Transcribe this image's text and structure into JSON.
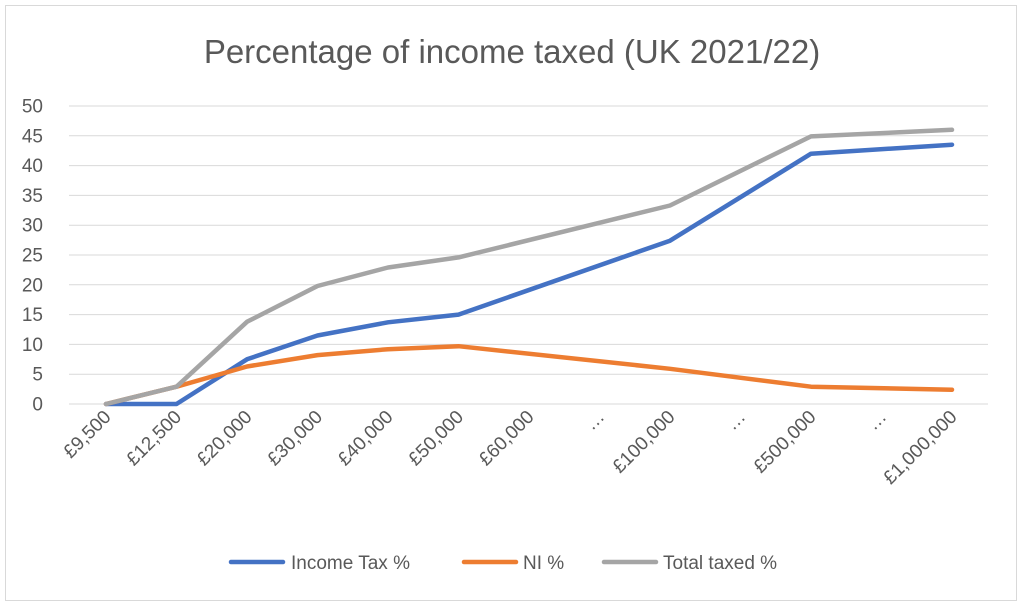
{
  "chart_data": {
    "type": "line",
    "title": "Percentage of income taxed (UK 2021/22)",
    "xlabel": "",
    "ylabel": "",
    "categories": [
      "£9,500",
      "£12,500",
      "£20,000",
      "£30,000",
      "£40,000",
      "£50,000",
      "£60,000",
      "…",
      "£100,000",
      "…",
      "£500,000",
      "…",
      "£1,000,000"
    ],
    "ylim": [
      0,
      50
    ],
    "yticks": [
      "0",
      "5",
      "10",
      "15",
      "20",
      "25",
      "30",
      "35",
      "40",
      "45",
      "50"
    ],
    "grid": true,
    "legend_position": "bottom",
    "series": [
      {
        "name": "Income Tax %",
        "color": "#4472C4",
        "values": [
          0,
          0,
          7.5,
          11.5,
          13.7,
          15,
          null,
          null,
          27.4,
          null,
          42,
          null,
          43.5
        ]
      },
      {
        "name": "NI %",
        "color": "#ED7D31",
        "values": [
          0,
          2.9,
          6.3,
          8.2,
          9.2,
          9.7,
          null,
          null,
          5.9,
          null,
          2.9,
          null,
          2.4
        ]
      },
      {
        "name": "Total taxed %",
        "color": "#A5A5A5",
        "values": [
          0,
          2.9,
          13.8,
          19.8,
          22.9,
          24.6,
          null,
          null,
          33.3,
          null,
          44.9,
          null,
          46
        ]
      }
    ]
  }
}
